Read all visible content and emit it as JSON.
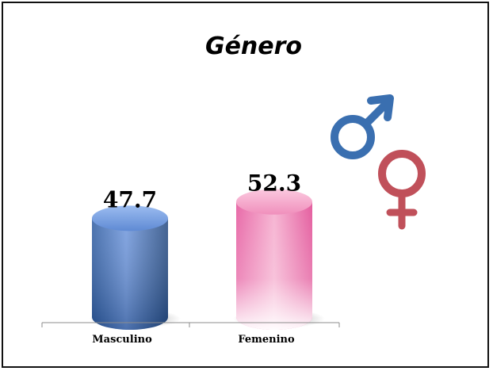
{
  "chart_data": {
    "type": "bar",
    "title": "Género",
    "categories": [
      "Masculino",
      "Femenino"
    ],
    "values": [
      47.7,
      52.3
    ],
    "value_labels": [
      "47.7",
      "52.3"
    ],
    "xlabel": "",
    "ylabel": "",
    "ylim": [
      0,
      60
    ],
    "grid": false,
    "legend": "none",
    "colors": {
      "masculino_light": "#8fb3ec",
      "masculino_dark": "#2c5aa0",
      "femenino_light": "#f4a6cb",
      "femenino_dark": "#e85aa0"
    }
  },
  "decoration": {
    "male_symbol_color": "#3a6fb0",
    "female_symbol_color": "#c0505a",
    "male_symbol_icon": "male-symbol-icon",
    "female_symbol_icon": "female-symbol-icon"
  }
}
